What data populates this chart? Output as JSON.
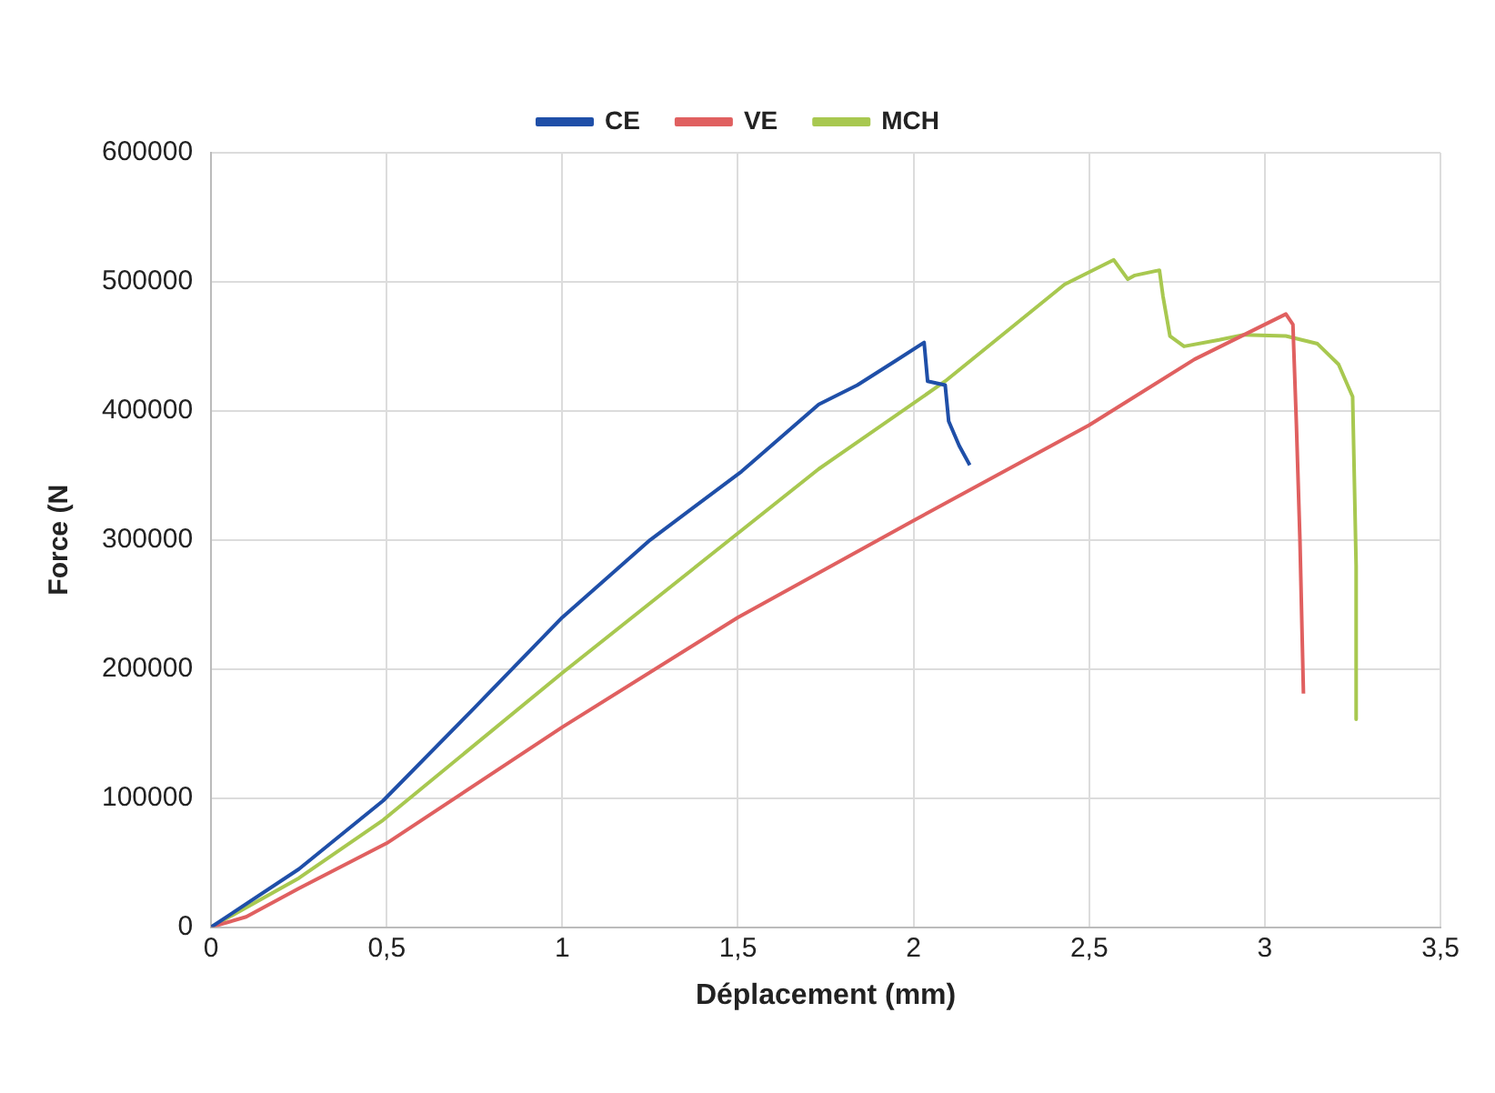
{
  "chart_data": {
    "type": "line",
    "xlabel": "Déplacement (mm)",
    "ylabel": "Force (N",
    "xlim": [
      0,
      3.5
    ],
    "xticks": [
      0,
      {
        "value": 0.5,
        "label": "0,5"
      },
      1,
      {
        "value": 1.5,
        "label": "1,5"
      },
      2,
      {
        "value": 2.5,
        "label": "2,5"
      },
      3,
      {
        "value": 3.5,
        "label": "3,5"
      }
    ],
    "ylim": [
      0,
      600000
    ],
    "yticks": [
      0,
      100000,
      200000,
      300000,
      400000,
      500000,
      600000
    ],
    "grid": true,
    "legend": "top",
    "marker": "none",
    "line_style": "solid",
    "series": [
      {
        "name": "CE",
        "color": "#1f4fa8",
        "x": [
          0,
          0.25,
          0.49,
          0.75,
          1.0,
          1.25,
          1.51,
          1.73,
          1.84,
          1.95,
          2.03,
          2.04,
          2.09,
          2.1,
          2.13,
          2.16
        ],
        "values": [
          0,
          45000,
          98000,
          170000,
          240000,
          300000,
          353000,
          405000,
          420000,
          439000,
          453000,
          423000,
          420000,
          392000,
          373000,
          358000
        ]
      },
      {
        "name": "VE",
        "color": "#e06060",
        "x": [
          0,
          0.1,
          0.25,
          0.5,
          1.0,
          1.5,
          2.0,
          2.5,
          2.8,
          3.06,
          3.08,
          3.09,
          3.1,
          3.11
        ],
        "values": [
          0,
          8000,
          30000,
          65000,
          155000,
          240000,
          315000,
          389000,
          440000,
          475000,
          467000,
          389000,
          300000,
          181000
        ]
      },
      {
        "name": "MCH",
        "color": "#a8c850",
        "x": [
          0,
          0.25,
          0.49,
          1.0,
          1.49,
          1.73,
          2.09,
          2.43,
          2.57,
          2.61,
          2.63,
          2.7,
          2.71,
          2.73,
          2.77,
          2.87,
          2.94,
          3.06,
          3.15,
          3.21,
          3.25,
          3.26,
          3.26
        ],
        "values": [
          0,
          38000,
          83000,
          197000,
          303000,
          355000,
          423000,
          498000,
          517000,
          502000,
          505000,
          509000,
          489000,
          458000,
          450000,
          455000,
          459000,
          458000,
          452000,
          436000,
          411000,
          280000,
          161000
        ]
      }
    ]
  }
}
